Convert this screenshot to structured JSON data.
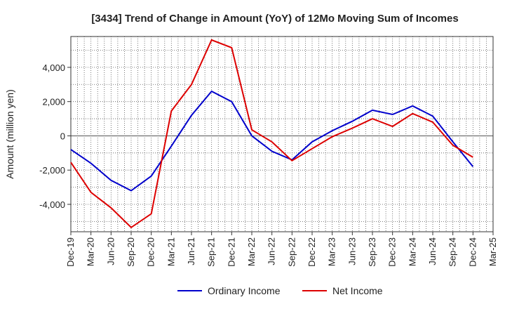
{
  "chart_data": {
    "type": "line",
    "title": "[3434]  Trend of Change in Amount (YoY) of 12Mo Moving Sum of Incomes",
    "xlabel": "",
    "ylabel": "Amount (million yen)",
    "ylim": [
      -5600,
      5800
    ],
    "yticks": [
      -4000,
      -2000,
      0,
      2000,
      4000
    ],
    "ytick_labels": [
      "-4,000",
      "-2,000",
      "0",
      "2,000",
      "4,000"
    ],
    "categories": [
      "Dec-19",
      "Mar-20",
      "Jun-20",
      "Sep-20",
      "Dec-20",
      "Mar-21",
      "Jun-21",
      "Sep-21",
      "Dec-21",
      "Mar-22",
      "Jun-22",
      "Sep-22",
      "Dec-22",
      "Mar-23",
      "Jun-23",
      "Sep-23",
      "Dec-23",
      "Mar-24",
      "Jun-24",
      "Sep-24",
      "Dec-24",
      "Mar-25"
    ],
    "grid": true,
    "legend_position": "bottom-center",
    "series": [
      {
        "name": "Ordinary Income",
        "color": "#0000cc",
        "values": [
          -800,
          -1600,
          -2600,
          -3200,
          -2350,
          -600,
          1200,
          2600,
          2000,
          0,
          -900,
          -1400,
          -350,
          300,
          850,
          1500,
          1250,
          1750,
          1150,
          -350,
          -1800,
          null
        ]
      },
      {
        "name": "Net Income",
        "color": "#dd0000",
        "values": [
          -1550,
          -3300,
          -4200,
          -5350,
          -4550,
          1450,
          3000,
          5600,
          5150,
          350,
          -350,
          -1450,
          -750,
          -50,
          450,
          1000,
          550,
          1300,
          800,
          -550,
          -1250,
          null
        ]
      }
    ]
  }
}
